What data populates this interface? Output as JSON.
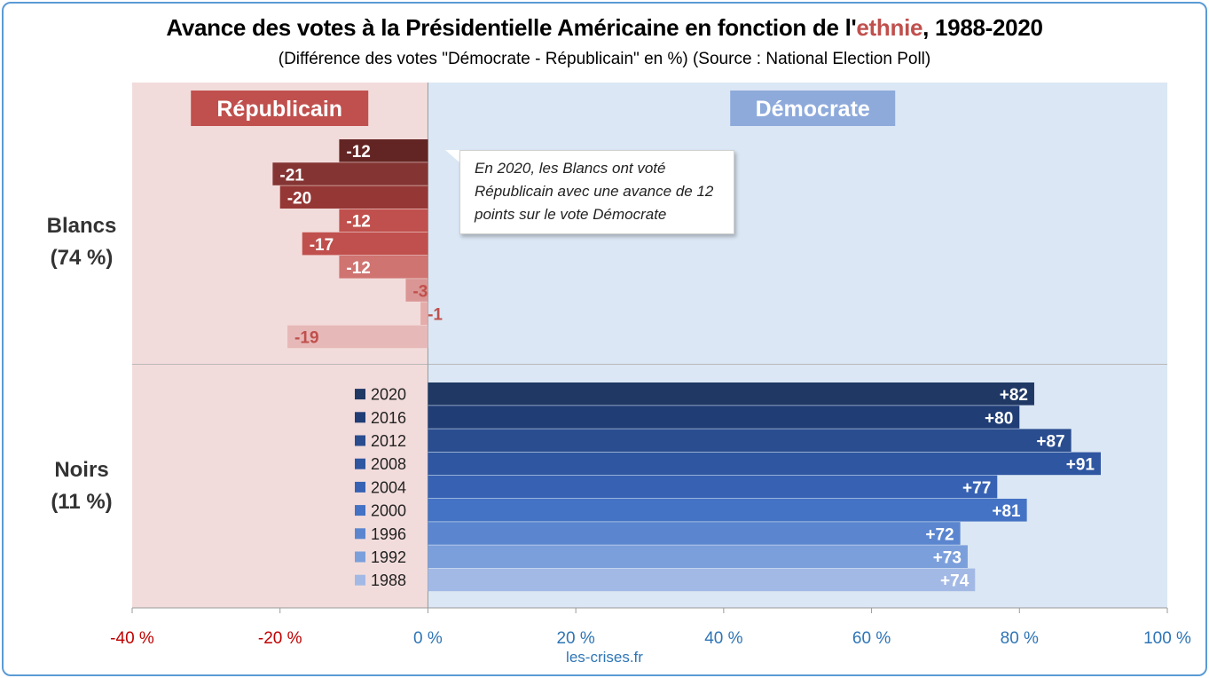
{
  "title": {
    "before": "Avance des votes à la Présidentielle Américaine en fonction de l'",
    "highlight": "ethnie",
    "after": ", 1988-2020"
  },
  "subtitle": "(Différence des votes \"Démocrate - Républicain\" en %) (Source : National Election Poll)",
  "annotation": "En 2020, les Blancs ont voté Républicain avec une avance de 12 points sur le vote Démocrate",
  "source": "les-crises.fr",
  "chart_data": {
    "type": "bar",
    "orientation": "horizontal",
    "xlim": [
      -40,
      100
    ],
    "xticks": [
      "-40 %",
      "-20 %",
      "0 %",
      "20 %",
      "40 %",
      "60 %",
      "80 %",
      "100 %"
    ],
    "xtick_values": [
      -40,
      -20,
      0,
      20,
      40,
      60,
      80,
      100
    ],
    "side_labels": {
      "left": "Républicain",
      "right": "Démocrate"
    },
    "legend_placement": "left of Noirs bars",
    "series_order": [
      "2020",
      "2016",
      "2012",
      "2008",
      "2004",
      "2000",
      "1996",
      "1992",
      "1988"
    ],
    "groups": [
      {
        "label": "Blancs",
        "share": "(74 %)",
        "values": [
          -12,
          -21,
          -20,
          -12,
          -17,
          -12,
          -3,
          -1,
          -19
        ],
        "labels": [
          "-12",
          "-21",
          "-20",
          "-12",
          "-17",
          "-12",
          "-3",
          "-1",
          "-19"
        ],
        "colors": [
          "#632523",
          "#843533",
          "#953735",
          "#c0504d",
          "#c0504d",
          "#cf7471",
          "#da9694",
          "#e4acaa",
          "#e6b9b8"
        ]
      },
      {
        "label": "Noirs",
        "share": "(11 %)",
        "values": [
          82,
          80,
          87,
          91,
          77,
          81,
          72,
          73,
          74
        ],
        "labels": [
          "+82",
          "+80",
          "+87",
          "+91",
          "+77",
          "+81",
          "+72",
          "+73",
          "+74"
        ],
        "colors": [
          "#1f3864",
          "#203d75",
          "#2a4d8f",
          "#2f56a0",
          "#3762b4",
          "#4472c4",
          "#5b86cf",
          "#7b9fdb",
          "#a3b9e5"
        ]
      }
    ]
  },
  "colors": {
    "republican_bg": "#f2dcdb",
    "democrat_bg": "#dbe7f4",
    "republican_badge": "#c0504d",
    "democrat_badge": "#8eaadb",
    "republican_tick": "#c00000",
    "democrat_tick": "#2e75b6",
    "frame": "#5b9bd5"
  }
}
